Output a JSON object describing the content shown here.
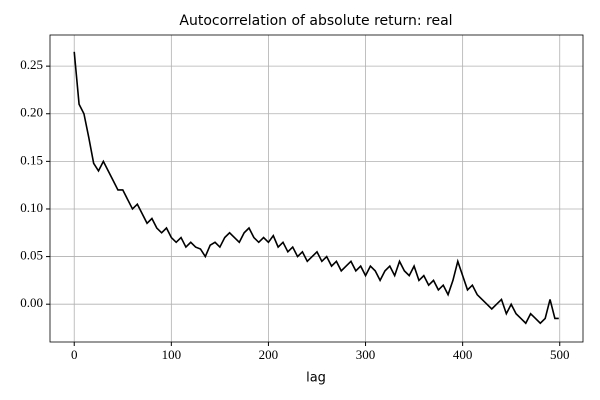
{
  "chart_data": {
    "type": "line",
    "title": "Autocorrelation of absolute return: real",
    "xlabel": "lag",
    "x": [
      0,
      5,
      10,
      15,
      20,
      25,
      30,
      35,
      40,
      45,
      50,
      55,
      60,
      65,
      70,
      75,
      80,
      85,
      90,
      95,
      100,
      105,
      110,
      115,
      120,
      125,
      130,
      135,
      140,
      145,
      150,
      155,
      160,
      165,
      170,
      175,
      180,
      185,
      190,
      195,
      200,
      205,
      210,
      215,
      220,
      225,
      230,
      235,
      240,
      245,
      250,
      255,
      260,
      265,
      270,
      275,
      280,
      285,
      290,
      295,
      300,
      305,
      310,
      315,
      320,
      325,
      330,
      335,
      340,
      345,
      350,
      355,
      360,
      365,
      370,
      375,
      380,
      385,
      390,
      395,
      400,
      405,
      410,
      415,
      420,
      425,
      430,
      435,
      440,
      445,
      450,
      455,
      460,
      465,
      470,
      475,
      480,
      485,
      490,
      495,
      499
    ],
    "series": [
      {
        "color": "#000000",
        "values": [
          0.265,
          0.21,
          0.2,
          0.175,
          0.148,
          0.14,
          0.15,
          0.14,
          0.13,
          0.12,
          0.12,
          0.11,
          0.1,
          0.105,
          0.095,
          0.085,
          0.09,
          0.08,
          0.075,
          0.08,
          0.07,
          0.065,
          0.07,
          0.06,
          0.065,
          0.06,
          0.058,
          0.05,
          0.062,
          0.065,
          0.06,
          0.07,
          0.075,
          0.07,
          0.065,
          0.075,
          0.08,
          0.07,
          0.065,
          0.07,
          0.065,
          0.072,
          0.06,
          0.065,
          0.055,
          0.06,
          0.05,
          0.055,
          0.045,
          0.05,
          0.055,
          0.045,
          0.05,
          0.04,
          0.045,
          0.035,
          0.04,
          0.045,
          0.035,
          0.04,
          0.03,
          0.04,
          0.035,
          0.025,
          0.035,
          0.04,
          0.03,
          0.045,
          0.035,
          0.03,
          0.04,
          0.025,
          0.03,
          0.02,
          0.025,
          0.015,
          0.02,
          0.01,
          0.025,
          0.045,
          0.03,
          0.015,
          0.02,
          0.01,
          0.005,
          0.0,
          -0.005,
          0.0,
          0.005,
          -0.01,
          0.0,
          -0.01,
          -0.015,
          -0.02,
          -0.01,
          -0.015,
          -0.02,
          -0.015,
          0.005,
          -0.015,
          -0.015
        ]
      }
    ],
    "xlim": [
      -24.95,
      523.95
    ],
    "xticks": [
      0,
      100,
      200,
      300,
      400,
      500
    ],
    "ylim": [
      -0.0397,
      0.2827
    ],
    "yticks": [
      {
        "value": 0,
        "label": "0.00"
      },
      0.05,
      {
        "value": 0.1,
        "label": "0.10"
      },
      0.15,
      {
        "value": 0.2,
        "label": "0.20"
      },
      0.25
    ],
    "grid": true
  }
}
